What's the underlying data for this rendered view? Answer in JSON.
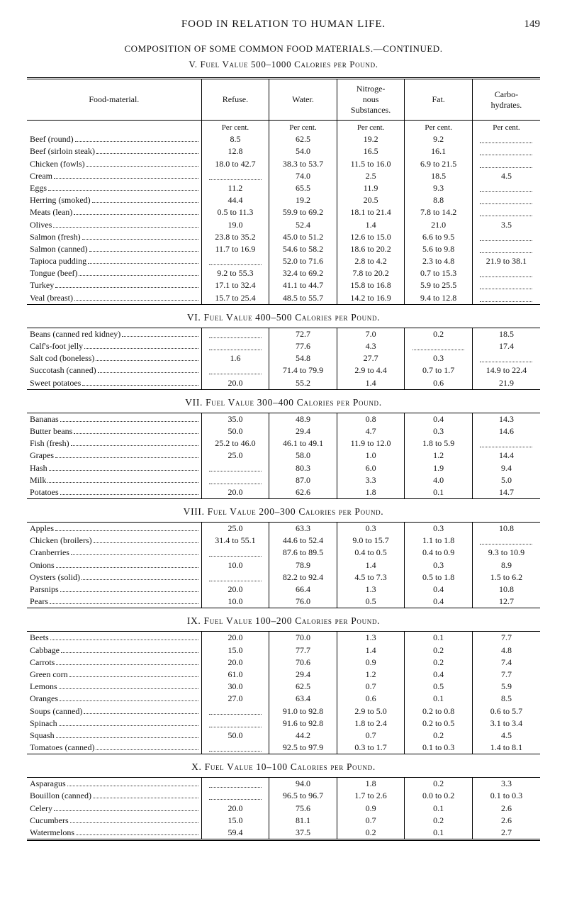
{
  "page": {
    "runningTitle": "FOOD IN RELATION TO HUMAN LIFE.",
    "pageNumber": "149",
    "caption1": "COMPOSITION OF SOME COMMON FOOD MATERIALS.—Continued.",
    "caption2": "V. Fuel Value 500–1000 Calories per Pound."
  },
  "columns": {
    "name": "Food-material.",
    "refuse": "Refuse.",
    "water": "Water.",
    "nitro": "Nitroge-\nnous\nSubstances.",
    "fat": "Fat.",
    "carbo": "Carbo-\nhydrates."
  },
  "percentLabel": "Per cent.",
  "sections": [
    {
      "title": null,
      "rows": [
        {
          "n": "Beef (round)",
          "r": "8.5",
          "w": "62.5",
          "ni": "19.2",
          "f": "9.2",
          "c": ""
        },
        {
          "n": "Beef (sirloin steak)",
          "r": "12.8",
          "w": "54.0",
          "ni": "16.5",
          "f": "16.1",
          "c": ""
        },
        {
          "n": "Chicken (fowls)",
          "r": "18.0 to 42.7",
          "w": "38.3 to 53.7",
          "ni": "11.5 to 16.0",
          "f": "6.9 to 21.5",
          "c": ""
        },
        {
          "n": "Cream",
          "r": "",
          "w": "74.0",
          "ni": "2.5",
          "f": "18.5",
          "c": "4.5"
        },
        {
          "n": "Eggs",
          "r": "11.2",
          "w": "65.5",
          "ni": "11.9",
          "f": "9.3",
          "c": ""
        },
        {
          "n": "Herring (smoked)",
          "r": "44.4",
          "w": "19.2",
          "ni": "20.5",
          "f": "8.8",
          "c": ""
        },
        {
          "n": "Meats (lean)",
          "r": "0.5 to 11.3",
          "w": "59.9 to 69.2",
          "ni": "18.1 to 21.4",
          "f": "7.8 to 14.2",
          "c": ""
        },
        {
          "n": "Olives",
          "r": "19.0",
          "w": "52.4",
          "ni": "1.4",
          "f": "21.0",
          "c": "3.5"
        },
        {
          "n": "Salmon (fresh)",
          "r": "23.8 to 35.2",
          "w": "45.0 to 51.2",
          "ni": "12.6 to 15.0",
          "f": "6.6 to 9.5",
          "c": ""
        },
        {
          "n": "Salmon (canned)",
          "r": "11.7 to 16.9",
          "w": "54.6 to 58.2",
          "ni": "18.6 to 20.2",
          "f": "5.6 to 9.8",
          "c": ""
        },
        {
          "n": "Tapioca pudding",
          "r": "",
          "w": "52.0 to 71.6",
          "ni": "2.8 to  4.2",
          "f": "2.3 to 4.8",
          "c": "21.9 to 38.1"
        },
        {
          "n": "Tongue (beef)",
          "r": "9.2 to 55.3",
          "w": "32.4 to 69.2",
          "ni": "7.8 to 20.2",
          "f": "0.7 to 15.3",
          "c": ""
        },
        {
          "n": "Turkey",
          "r": "17.1 to 32.4",
          "w": "41.1 to 44.7",
          "ni": "15.8 to 16.8",
          "f": "5.9 to 25.5",
          "c": ""
        },
        {
          "n": "Veal (breast)",
          "r": "15.7 to 25.4",
          "w": "48.5 to 55.7",
          "ni": "14.2 to 16.9",
          "f": "9.4 to 12.8",
          "c": ""
        }
      ]
    },
    {
      "title": "VI. Fuel Value 400–500 Calories per Pound.",
      "rows": [
        {
          "n": "Beans (canned red kidney)",
          "r": "",
          "w": "72.7",
          "ni": "7.0",
          "f": "0.2",
          "c": "18.5"
        },
        {
          "n": "Calf's-foot jelly",
          "r": "",
          "w": "77.6",
          "ni": "4.3",
          "f": "",
          "c": "17.4"
        },
        {
          "n": "Salt cod (boneless)",
          "r": "1.6",
          "w": "54.8",
          "ni": "27.7",
          "f": "0.3",
          "c": ""
        },
        {
          "n": "Succotash (canned)",
          "r": "",
          "w": "71.4 to 79.9",
          "ni": "2.9 to 4.4",
          "f": "0.7 to 1.7",
          "c": "14.9 to 22.4"
        },
        {
          "n": "Sweet potatoes",
          "r": "20.0",
          "w": "55.2",
          "ni": "1.4",
          "f": "0.6",
          "c": "21.9"
        }
      ]
    },
    {
      "title": "VII. Fuel Value 300–400 Calories per Pound.",
      "rows": [
        {
          "n": "Bananas",
          "r": "35.0",
          "w": "48.9",
          "ni": "0.8",
          "f": "0.4",
          "c": "14.3"
        },
        {
          "n": "Butter beans",
          "r": "50.0",
          "w": "29.4",
          "ni": "4.7",
          "f": "0.3",
          "c": "14.6"
        },
        {
          "n": "Fish (fresh)",
          "r": "25.2 to 46.0",
          "w": "46.1 to 49.1",
          "ni": "11.9 to 12.0",
          "f": "1.8 to 5.9",
          "c": ""
        },
        {
          "n": "Grapes",
          "r": "25.0",
          "w": "58.0",
          "ni": "1.0",
          "f": "1.2",
          "c": "14.4"
        },
        {
          "n": "Hash",
          "r": "",
          "w": "80.3",
          "ni": "6.0",
          "f": "1.9",
          "c": "9.4"
        },
        {
          "n": "Milk",
          "r": "",
          "w": "87.0",
          "ni": "3.3",
          "f": "4.0",
          "c": "5.0"
        },
        {
          "n": "Potatoes",
          "r": "20.0",
          "w": "62.6",
          "ni": "1.8",
          "f": "0.1",
          "c": "14.7"
        }
      ]
    },
    {
      "title": "VIII. Fuel Value 200–300 Calories per Pound.",
      "rows": [
        {
          "n": "Apples",
          "r": "25.0",
          "w": "63.3",
          "ni": "0.3",
          "f": "0.3",
          "c": "10.8"
        },
        {
          "n": "Chicken (broilers)",
          "r": "31.4 to 55.1",
          "w": "44.6 to 52.4",
          "ni": "9.0 to 15.7",
          "f": "1.1 to 1.8",
          "c": ""
        },
        {
          "n": "Cranberries",
          "r": "",
          "w": "87.6 to 89.5",
          "ni": "0.4 to 0.5",
          "f": "0.4 to 0.9",
          "c": "9.3 to 10.9"
        },
        {
          "n": "Onions",
          "r": "10.0",
          "w": "78.9",
          "ni": "1.4",
          "f": "0.3",
          "c": "8.9"
        },
        {
          "n": "Oysters (solid)",
          "r": "",
          "w": "82.2 to 92.4",
          "ni": "4.5 to 7.3",
          "f": "0.5 to 1.8",
          "c": "1.5 to 6.2"
        },
        {
          "n": "Parsnips",
          "r": "20.0",
          "w": "66.4",
          "ni": "1.3",
          "f": "0.4",
          "c": "10.8"
        },
        {
          "n": "Pears",
          "r": "10.0",
          "w": "76.0",
          "ni": "0.5",
          "f": "0.4",
          "c": "12.7"
        }
      ]
    },
    {
      "title": "IX. Fuel Value 100–200 Calories per Pound.",
      "rows": [
        {
          "n": "Beets",
          "r": "20.0",
          "w": "70.0",
          "ni": "1.3",
          "f": "0.1",
          "c": "7.7"
        },
        {
          "n": "Cabbage",
          "r": "15.0",
          "w": "77.7",
          "ni": "1.4",
          "f": "0.2",
          "c": "4.8"
        },
        {
          "n": "Carrots",
          "r": "20.0",
          "w": "70.6",
          "ni": "0.9",
          "f": "0.2",
          "c": "7.4"
        },
        {
          "n": "Green corn",
          "r": "61.0",
          "w": "29.4",
          "ni": "1.2",
          "f": "0.4",
          "c": "7.7"
        },
        {
          "n": "Lemons",
          "r": "30.0",
          "w": "62.5",
          "ni": "0.7",
          "f": "0.5",
          "c": "5.9"
        },
        {
          "n": "Oranges",
          "r": "27.0",
          "w": "63.4",
          "ni": "0.6",
          "f": "0.1",
          "c": "8.5"
        },
        {
          "n": "Soups (canned)",
          "r": "",
          "w": "91.0 to 92.8",
          "ni": "2.9 to 5.0",
          "f": "0.2 to 0.8",
          "c": "0.6 to 5.7"
        },
        {
          "n": "Spinach",
          "r": "",
          "w": "91.6 to 92.8",
          "ni": "1.8 to 2.4",
          "f": "0.2 to 0.5",
          "c": "3.1 to 3.4"
        },
        {
          "n": "Squash",
          "r": "50.0",
          "w": "44.2",
          "ni": "0.7",
          "f": "0.2",
          "c": "4.5"
        },
        {
          "n": "Tomatoes (canned)",
          "r": "",
          "w": "92.5 to 97.9",
          "ni": "0.3 to 1.7",
          "f": "0.1 to 0.3",
          "c": "1.4 to 8.1"
        }
      ]
    },
    {
      "title": "X. Fuel Value 10–100 Calories per Pound.",
      "rows": [
        {
          "n": "Asparagus",
          "r": "",
          "w": "94.0",
          "ni": "1.8",
          "f": "0.2",
          "c": "3.3"
        },
        {
          "n": "Bouillon (canned)",
          "r": "",
          "w": "96.5 to 96.7",
          "ni": "1.7 to 2.6",
          "f": "0.0 to 0.2",
          "c": "0.1 to 0.3"
        },
        {
          "n": "Celery",
          "r": "20.0",
          "w": "75.6",
          "ni": "0.9",
          "f": "0.1",
          "c": "2.6"
        },
        {
          "n": "Cucumbers",
          "r": "15.0",
          "w": "81.1",
          "ni": "0.7",
          "f": "0.2",
          "c": "2.6"
        },
        {
          "n": "Watermelons",
          "r": "59.4",
          "w": "37.5",
          "ni": "0.2",
          "f": "0.1",
          "c": "2.7"
        }
      ]
    }
  ],
  "style": {
    "colWidthsPct": [
      34,
      13.2,
      13.2,
      13.2,
      13.2,
      13.2
    ],
    "background": "#ffffff",
    "text": "#111111",
    "rule": "#000000",
    "dots": "#333333",
    "baseFontPx": 12,
    "headerFontPx": 15
  }
}
